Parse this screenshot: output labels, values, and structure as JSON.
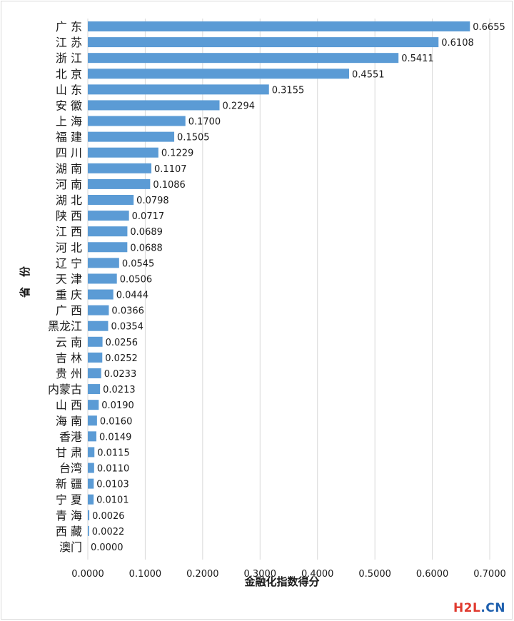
{
  "chart_data": {
    "type": "bar",
    "orientation": "horizontal",
    "title": "",
    "xlabel": "金融化指数得分",
    "ylabel": "省份",
    "xlim": [
      0,
      0.7
    ],
    "xticks": [
      "0.0000",
      "0.1000",
      "0.2000",
      "0.3000",
      "0.4000",
      "0.5000",
      "0.6000",
      "0.7000"
    ],
    "grid": true,
    "legend": "none",
    "bar_color": "#5b9bd5",
    "grid_color": "#d9d9d9",
    "text_color": "#1a1a1a",
    "categories": [
      "广 东",
      "江 苏",
      "浙 江",
      "北 京",
      "山 东",
      "安 徽",
      "上 海",
      "福 建",
      "四 川",
      "湖 南",
      "河 南",
      "湖 北",
      "陕 西",
      "江 西",
      "河 北",
      "辽 宁",
      "天 津",
      "重 庆",
      "广 西",
      "黑龙江",
      "云 南",
      "吉 林",
      "贵 州",
      "内蒙古",
      "山 西",
      "海 南",
      "香港",
      "甘 肃",
      "台湾",
      "新 疆",
      "宁 夏",
      "青 海",
      "西 藏",
      "澳门"
    ],
    "values": [
      0.6655,
      0.6108,
      0.5411,
      0.4551,
      0.3155,
      0.2294,
      0.17,
      0.1505,
      0.1229,
      0.1107,
      0.1086,
      0.0798,
      0.0717,
      0.0689,
      0.0688,
      0.0545,
      0.0506,
      0.0444,
      0.0366,
      0.0354,
      0.0256,
      0.0252,
      0.0233,
      0.0213,
      0.019,
      0.016,
      0.0149,
      0.0115,
      0.011,
      0.0103,
      0.0101,
      0.0026,
      0.0022,
      0.0
    ],
    "data_labels": [
      "0.6655",
      "0.6108",
      "0.5411",
      "0.4551",
      "0.3155",
      "0.2294",
      "0.1700",
      "0.1505",
      "0.1229",
      "0.1107",
      "0.1086",
      "0.0798",
      "0.0717",
      "0.0689",
      "0.0688",
      "0.0545",
      "0.0506",
      "0.0444",
      "0.0366",
      "0.0354",
      "0.0256",
      "0.0252",
      "0.0233",
      "0.0213",
      "0.0190",
      "0.0160",
      "0.0149",
      "0.0115",
      "0.0110",
      "0.0103",
      "0.0101",
      "0.0026",
      "0.0022",
      "0.0000"
    ]
  },
  "watermark": {
    "part_a": "H2L",
    "part_b": ".CN",
    "color_a": "#e03a2f",
    "color_b": "#1d5fae"
  }
}
